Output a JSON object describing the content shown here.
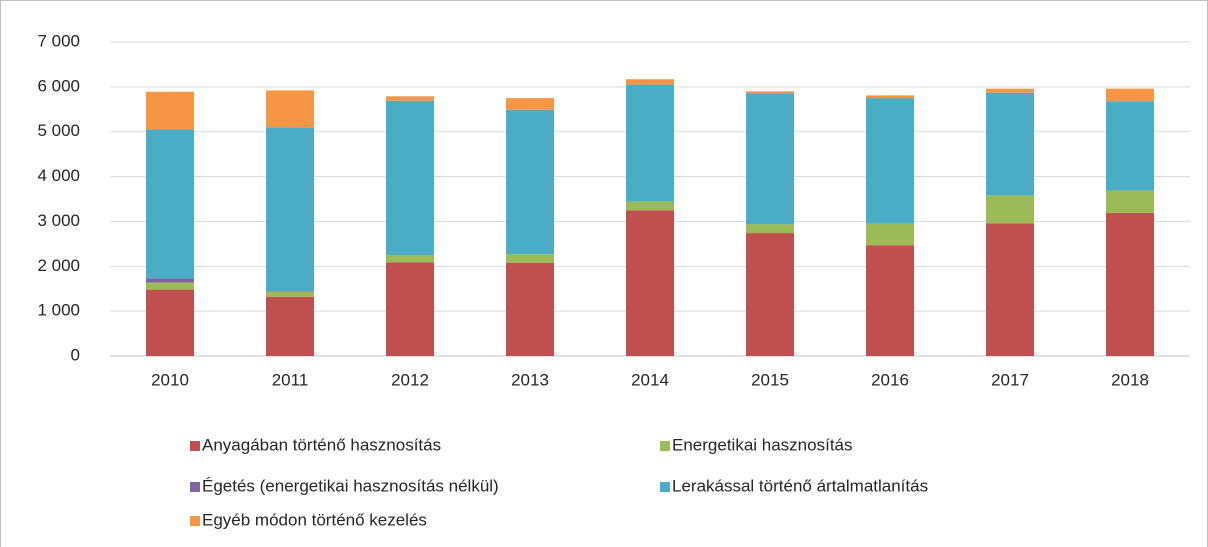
{
  "chart_data": {
    "type": "stacked_bar",
    "categories": [
      "2010",
      "2011",
      "2012",
      "2013",
      "2014",
      "2015",
      "2016",
      "2017",
      "2018"
    ],
    "series": [
      {
        "name": "Anyagában történő hasznosítás",
        "color": "#c0504d",
        "values": [
          1480,
          1320,
          2090,
          2080,
          3250,
          2740,
          2470,
          2960,
          3190
        ]
      },
      {
        "name": "Energetikai hasznosítás",
        "color": "#9bbb59",
        "values": [
          160,
          120,
          160,
          190,
          190,
          200,
          480,
          620,
          500
        ]
      },
      {
        "name": "Égetés (energetikai hasznosítás nélkül)",
        "color": "#8064a2",
        "values": [
          90,
          10,
          0,
          0,
          0,
          0,
          0,
          0,
          0
        ]
      },
      {
        "name": "Lerakással történő ártalmatlanítás",
        "color": "#4bacc6",
        "values": [
          3320,
          3650,
          3440,
          3220,
          2610,
          2920,
          2800,
          2290,
          1990
        ]
      },
      {
        "name": "Egyéb módon történő kezelés",
        "color": "#f79646",
        "values": [
          840,
          820,
          100,
          260,
          120,
          40,
          60,
          90,
          280
        ]
      }
    ],
    "ylim": [
      0,
      7000
    ],
    "yticks": [
      0,
      {
        "value": 1000,
        "label": "1 000"
      },
      {
        "value": 2000,
        "label": "2 000"
      },
      {
        "value": 3000,
        "label": "3 000"
      },
      {
        "value": 4000,
        "label": "4 000"
      },
      {
        "value": 5000,
        "label": "5 000"
      },
      {
        "value": 6000,
        "label": "6 000"
      },
      {
        "value": 7000,
        "label": "7 000"
      }
    ],
    "grid": true,
    "legend": "bottom"
  }
}
